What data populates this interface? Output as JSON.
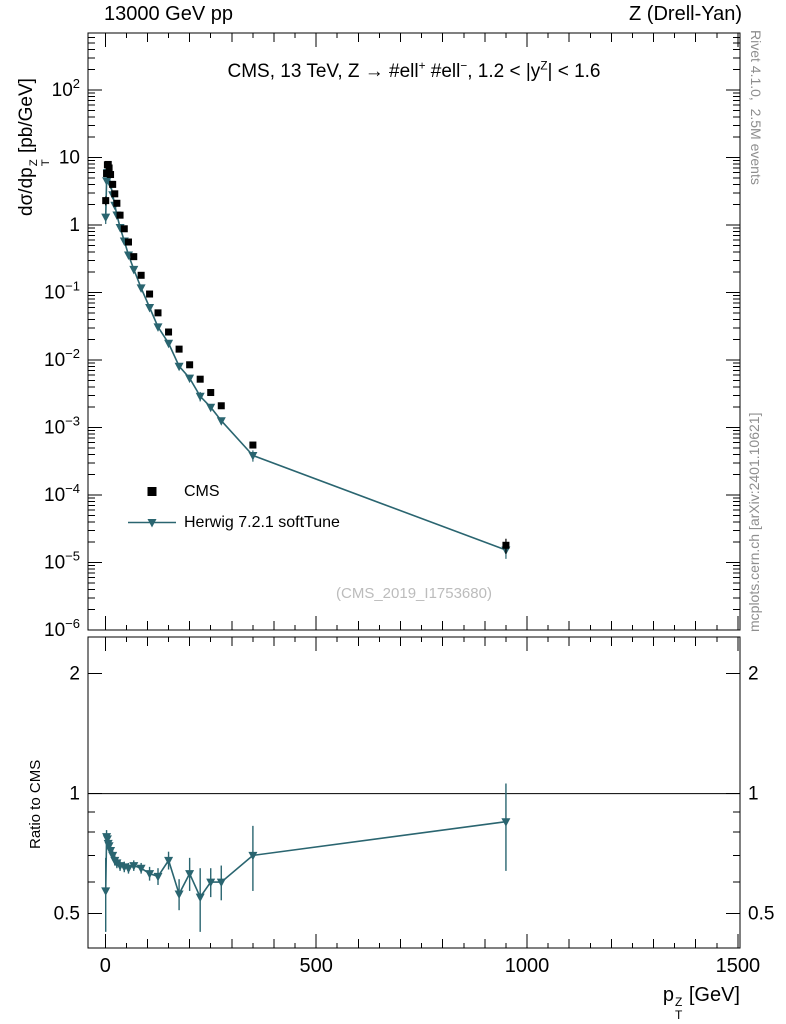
{
  "header": {
    "left": "13000 GeV pp",
    "right": "Z (Drell-Yan)"
  },
  "watermark": "(CMS_2019_I1753680)",
  "side_notes": {
    "top_right": "Rivet 4.1.0,  2.5M events",
    "bottom_right": "mcplots.cern.ch [arXiv:2401.10621]"
  },
  "legend": [
    {
      "label": "CMS",
      "marker": "square",
      "color": "#000000"
    },
    {
      "label": "Herwig 7.2.1 softTune",
      "marker": "triangle-down-line",
      "color": "#2a6570"
    }
  ],
  "colors": {
    "cms": "#000000",
    "herwig": "#2a6570",
    "frame": "#000000",
    "ref_line": "#000000",
    "watermark": "#bcbcbc",
    "side_notes": "#8e8e8e"
  },
  "rich_text": {
    "plot_title": [
      {
        "t": "CMS, 13 TeV, Z → #ell"
      },
      {
        "t": "+",
        "pos": "sup"
      },
      {
        "t": " #ell"
      },
      {
        "t": "−",
        "pos": "sup"
      },
      {
        "t": ", 1.2 < |y"
      },
      {
        "t": "Z",
        "pos": "sup"
      },
      {
        "t": "| < 1.6"
      }
    ],
    "main_y_label": [
      {
        "t": "dσ/dp"
      },
      {
        "stack": {
          "sup": "Z",
          "sub": "T"
        }
      },
      {
        "t": " [pb/GeV]"
      }
    ],
    "x_label": [
      {
        "t": "p"
      },
      {
        "stack": {
          "sup": "Z",
          "sub": "T"
        }
      },
      {
        "t": " [GeV]"
      }
    ]
  },
  "chart_data": [
    {
      "type": "line",
      "panel": "spectrum",
      "title": "CMS, 13 TeV, Z -> #ell+ #ell-, 1.2 < |y^Z| < 1.6",
      "xlabel": "p_T^Z [GeV]",
      "ylabel": "dσ/dp_T^Z [pb/GeV]",
      "xscale": "linear",
      "yscale": "log",
      "xlim": [
        -41,
        1505
      ],
      "ylim": [
        1e-06,
        700
      ],
      "xticks": [
        0,
        500,
        1000,
        1500
      ],
      "ytick_decades": [
        2,
        1,
        0,
        -1,
        -2,
        -3,
        -4,
        -5,
        -6
      ],
      "grid": false,
      "legend_position": "left-middle",
      "x": [
        1,
        3,
        5,
        7,
        9,
        12.5,
        17.5,
        22.5,
        27.5,
        35,
        45,
        55,
        67.5,
        85,
        105,
        125,
        150,
        175,
        200,
        225,
        250,
        275,
        350,
        950
      ],
      "series": [
        {
          "name": "CMS",
          "marker": "square",
          "color": "#000000",
          "y": [
            2.3,
            5.8,
            7.8,
            7.9,
            7.0,
            5.6,
            4.0,
            2.9,
            2.1,
            1.4,
            0.88,
            0.56,
            0.34,
            0.18,
            0.095,
            0.05,
            0.026,
            0.0145,
            0.0085,
            0.0052,
            0.0033,
            0.0021,
            0.00055,
            1.8e-05
          ],
          "yerr_rel": [
            0.15,
            0.04,
            0.03,
            0.03,
            0.03,
            0.03,
            0.03,
            0.03,
            0.03,
            0.03,
            0.03,
            0.03,
            0.03,
            0.03,
            0.04,
            0.04,
            0.05,
            0.05,
            0.06,
            0.07,
            0.08,
            0.09,
            0.1,
            0.25
          ]
        },
        {
          "name": "Herwig 7.2.1 softTune",
          "marker": "triangle-down",
          "line": true,
          "color": "#2a6570",
          "y": [
            1.31,
            4.52,
            6.0,
            5.9,
            5.2,
            4.0,
            2.8,
            1.97,
            1.41,
            0.92,
            0.58,
            0.36,
            0.22,
            0.117,
            0.06,
            0.031,
            0.0177,
            0.0081,
            0.0054,
            0.0029,
            0.002,
            0.00126,
            0.000385,
            1.53e-05
          ],
          "yerr_rel": [
            0.21,
            0.04,
            0.03,
            0.03,
            0.03,
            0.03,
            0.03,
            0.03,
            0.03,
            0.03,
            0.03,
            0.03,
            0.03,
            0.03,
            0.04,
            0.05,
            0.05,
            0.09,
            0.1,
            0.16,
            0.08,
            0.1,
            0.19,
            0.26
          ]
        }
      ]
    },
    {
      "type": "line",
      "panel": "ratio",
      "ylabel": "Ratio to CMS",
      "yscale": "log",
      "ylim": [
        0.41,
        2.47
      ],
      "yticks": [
        0.5,
        1,
        2
      ],
      "yticks_minor": [
        0.6,
        0.7,
        0.8,
        0.9
      ],
      "refline": 1,
      "x": [
        1,
        3,
        5,
        7,
        9,
        12.5,
        17.5,
        22.5,
        27.5,
        35,
        45,
        55,
        67.5,
        85,
        105,
        125,
        150,
        175,
        200,
        225,
        250,
        275,
        350,
        950
      ],
      "series": [
        {
          "name": "Herwig 7.2.1 softTune / CMS",
          "marker": "triangle-down",
          "line": true,
          "color": "#2a6570",
          "y": [
            0.57,
            0.78,
            0.77,
            0.75,
            0.74,
            0.72,
            0.7,
            0.68,
            0.67,
            0.66,
            0.655,
            0.65,
            0.66,
            0.65,
            0.63,
            0.62,
            0.68,
            0.56,
            0.63,
            0.55,
            0.6,
            0.6,
            0.7,
            0.85
          ],
          "yerr": [
            0.12,
            0.03,
            0.02,
            0.02,
            0.02,
            0.02,
            0.02,
            0.02,
            0.02,
            0.02,
            0.02,
            0.02,
            0.02,
            0.02,
            0.025,
            0.03,
            0.035,
            0.05,
            0.06,
            0.1,
            0.05,
            0.06,
            0.13,
            0.21
          ]
        }
      ]
    }
  ]
}
